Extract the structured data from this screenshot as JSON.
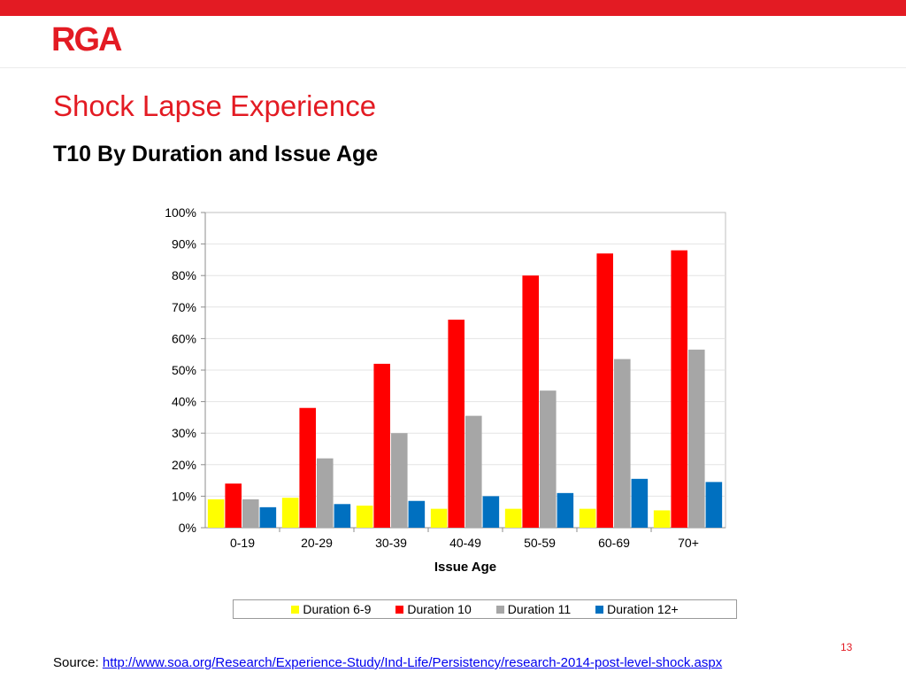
{
  "header": {
    "logo_text": "RGA"
  },
  "slide": {
    "title": "Shock Lapse Experience",
    "subtitle": "T10 By Duration and Issue Age",
    "page_number": "13",
    "source_label": "Source:",
    "source_link": "http://www.soa.org/Research/Experience-Study/Ind-Life/Persistency/research-2014-post-level-shock.aspx"
  },
  "colors": {
    "brand": "#e31b23",
    "series": [
      "#ffff00",
      "#ff0000",
      "#a6a6a6",
      "#0070c0"
    ]
  },
  "chart_data": {
    "type": "bar",
    "title": "",
    "xlabel": "Issue Age",
    "ylabel": "",
    "ylim": [
      0,
      1
    ],
    "y_ticks": [
      "0%",
      "10%",
      "20%",
      "30%",
      "40%",
      "50%",
      "60%",
      "70%",
      "80%",
      "90%",
      "100%"
    ],
    "grid": true,
    "legend_position": "bottom",
    "categories": [
      "0-19",
      "20-29",
      "30-39",
      "40-49",
      "50-59",
      "60-69",
      "70+"
    ],
    "series": [
      {
        "name": "Duration 6-9",
        "values": [
          0.09,
          0.095,
          0.07,
          0.06,
          0.06,
          0.06,
          0.055
        ]
      },
      {
        "name": "Duration 10",
        "values": [
          0.14,
          0.38,
          0.52,
          0.66,
          0.8,
          0.87,
          0.88
        ]
      },
      {
        "name": "Duration 11",
        "values": [
          0.09,
          0.22,
          0.3,
          0.355,
          0.435,
          0.535,
          0.565
        ]
      },
      {
        "name": "Duration 12+",
        "values": [
          0.065,
          0.075,
          0.085,
          0.1,
          0.11,
          0.155,
          0.145
        ]
      }
    ]
  }
}
